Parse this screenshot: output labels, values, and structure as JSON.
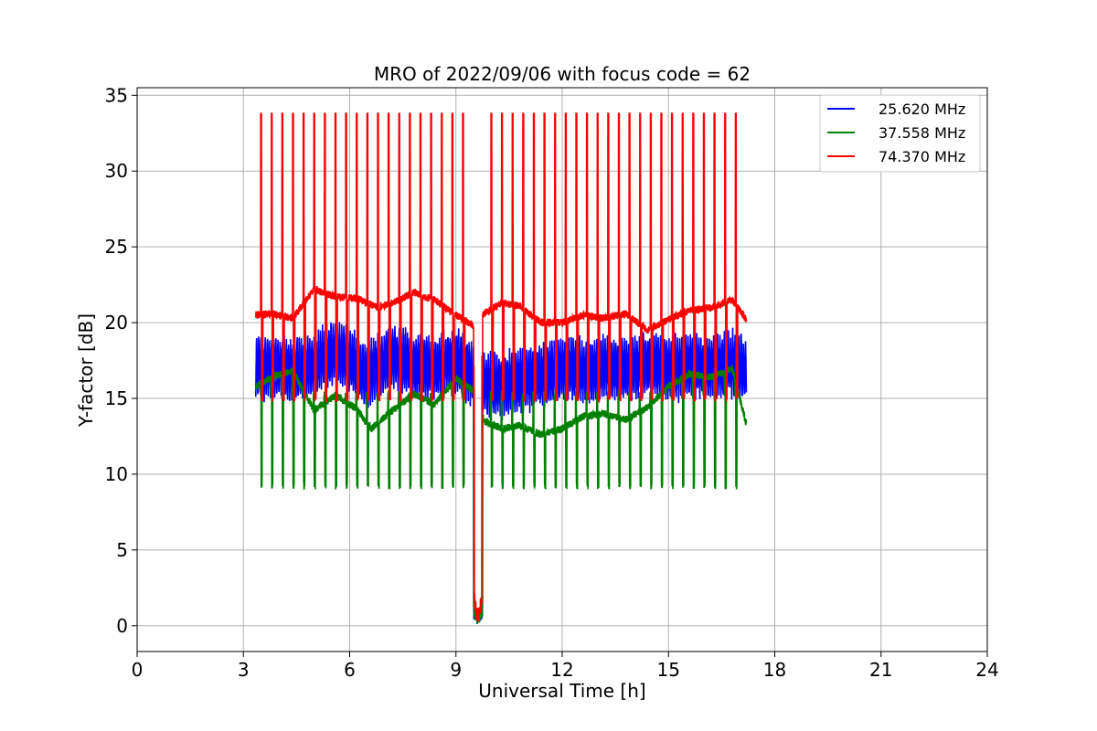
{
  "chart_data": {
    "type": "line",
    "title": "MRO of 2022/09/06 with focus code = 62",
    "xlabel": "Universal Time [h]",
    "ylabel": "Y-factor [dB]",
    "xlim": [
      0,
      24
    ],
    "ylim": [
      -1.7,
      35.5
    ],
    "xticks": [
      0,
      3,
      6,
      9,
      12,
      15,
      18,
      21,
      24
    ],
    "yticks": [
      0,
      5,
      10,
      15,
      20,
      25,
      30,
      35
    ],
    "grid": true,
    "legend_position": "top-right",
    "data_span_hours": [
      3.35,
      17.2
    ],
    "series": [
      {
        "name": "25.620 MHz",
        "color": "#0000ff",
        "baseline_x": [
          3.35,
          3.8,
          4.4,
          5.0,
          5.5,
          6.0,
          6.5,
          7.2,
          7.8,
          8.4,
          9.0,
          9.5,
          9.75,
          10.2,
          10.8,
          11.4,
          12.0,
          12.6,
          13.2,
          13.8,
          14.4,
          15.0,
          15.6,
          16.2,
          16.8,
          17.2
        ],
        "baseline_y": [
          17.2,
          17.0,
          16.8,
          17.2,
          18.0,
          17.5,
          16.5,
          17.8,
          17.2,
          17.0,
          17.6,
          16.5,
          16.0,
          15.8,
          16.2,
          16.5,
          17.0,
          16.8,
          17.1,
          16.9,
          17.3,
          17.0,
          17.2,
          17.1,
          17.3,
          16.8
        ],
        "oscillation_amplitude": 2.2,
        "oscillation_period_hours": 0.06
      },
      {
        "name": "37.558 MHz",
        "color": "#008000",
        "baseline_x": [
          3.35,
          3.8,
          4.4,
          5.0,
          5.6,
          6.2,
          6.6,
          7.2,
          7.8,
          8.4,
          9.0,
          9.5,
          9.8,
          10.3,
          10.8,
          11.4,
          12.0,
          12.6,
          13.2,
          13.8,
          14.4,
          15.0,
          15.6,
          16.2,
          16.8,
          17.2
        ],
        "baseline_y": [
          15.8,
          16.4,
          16.8,
          14.2,
          15.2,
          14.3,
          13.0,
          14.2,
          15.3,
          14.6,
          16.3,
          15.5,
          13.5,
          13.0,
          13.2,
          12.6,
          13.0,
          13.8,
          14.0,
          13.6,
          14.4,
          15.8,
          16.6,
          16.4,
          17.0,
          13.3
        ],
        "dip_value": 9.0,
        "spike_value": 15.5
      },
      {
        "name": "74.370 MHz",
        "color": "#ff0000",
        "baseline_x": [
          3.35,
          3.8,
          4.4,
          5.0,
          5.6,
          6.2,
          6.8,
          7.4,
          7.8,
          8.4,
          9.0,
          9.5,
          9.8,
          10.3,
          10.8,
          11.4,
          12.0,
          12.6,
          13.2,
          13.8,
          14.4,
          15.0,
          15.6,
          16.2,
          16.8,
          17.2
        ],
        "baseline_y": [
          20.5,
          20.6,
          20.3,
          22.2,
          21.7,
          21.6,
          21.0,
          21.5,
          22.0,
          21.5,
          20.5,
          19.8,
          20.6,
          21.3,
          21.1,
          20.0,
          20.0,
          20.5,
          20.3,
          20.6,
          19.5,
          20.2,
          20.8,
          21.0,
          21.5,
          20.2
        ],
        "spike_value": 33.8,
        "dip_value": 14.8,
        "spike_times": [
          3.5,
          3.8,
          4.1,
          4.4,
          4.7,
          5.0,
          5.3,
          5.6,
          5.9,
          6.2,
          6.5,
          6.8,
          7.1,
          7.4,
          7.7,
          8.0,
          8.3,
          8.6,
          8.9,
          9.2,
          10.0,
          10.3,
          10.6,
          10.9,
          11.2,
          11.5,
          11.8,
          12.1,
          12.4,
          12.7,
          13.0,
          13.3,
          13.6,
          13.9,
          14.2,
          14.5,
          14.8,
          15.1,
          15.4,
          15.7,
          16.0,
          16.3,
          16.6,
          16.9
        ],
        "dropout": {
          "start": 9.5,
          "end": 9.75,
          "min_value": 0.0
        }
      }
    ]
  }
}
